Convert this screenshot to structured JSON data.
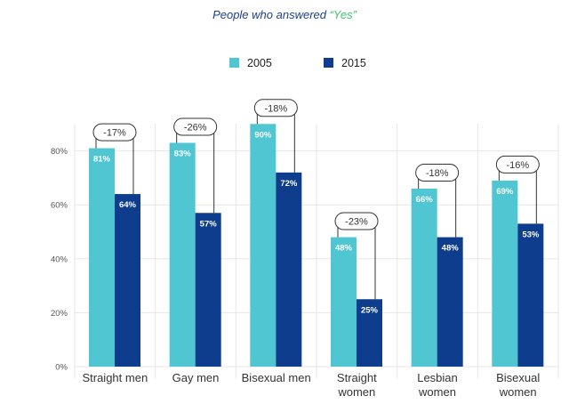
{
  "chart_data": {
    "type": "bar",
    "title": "People who answered “Yes”",
    "title_parts": {
      "prefix": "People who answered ",
      "highlight": "“Yes”"
    },
    "categories": [
      [
        "Straight men"
      ],
      [
        "Gay men"
      ],
      [
        "Bisexual men"
      ],
      [
        "Straight",
        "women"
      ],
      [
        "Lesbian",
        "women"
      ],
      [
        "Bisexual",
        "women"
      ]
    ],
    "series": [
      {
        "name": "2005",
        "color": "#4fc6d2",
        "values": [
          81,
          83,
          90,
          48,
          66,
          69
        ],
        "labels": [
          "81%",
          "83%",
          "90%",
          "48%",
          "66%",
          "69%"
        ]
      },
      {
        "name": "2015",
        "color": "#0d3d8c",
        "values": [
          64,
          57,
          72,
          25,
          48,
          53
        ],
        "labels": [
          "64%",
          "57%",
          "72%",
          "25%",
          "48%",
          "53%"
        ]
      }
    ],
    "changes": [
      "-17%",
      "-26%",
      "-18%",
      "-23%",
      "-18%",
      "-16%"
    ],
    "ylim": [
      0,
      100
    ],
    "yticks": [
      0,
      20,
      40,
      60,
      80
    ],
    "ytick_labels": [
      "0%",
      "20%",
      "40%",
      "60%",
      "80%"
    ],
    "grid": true,
    "legend": "top-center",
    "colors": {
      "title": "#1f3f8a",
      "highlight": "#3ec46b",
      "grid": "#e6e6e6"
    }
  }
}
